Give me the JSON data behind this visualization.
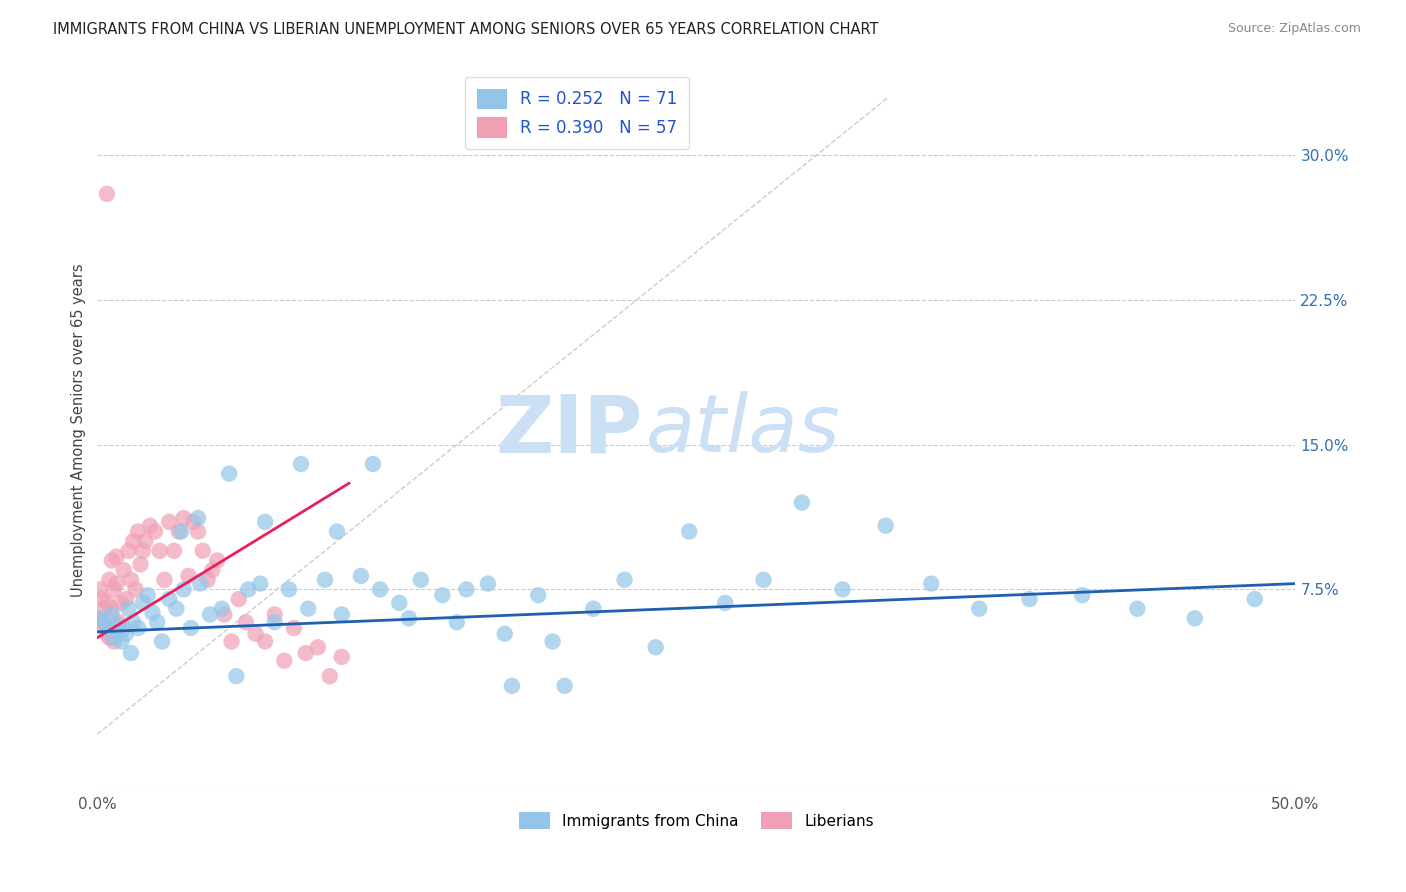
{
  "title": "IMMIGRANTS FROM CHINA VS LIBERIAN UNEMPLOYMENT AMONG SENIORS OVER 65 YEARS CORRELATION CHART",
  "source": "Source: ZipAtlas.com",
  "ylabel": "Unemployment Among Seniors over 65 years",
  "xlim": [
    0.0,
    0.5
  ],
  "ylim": [
    -0.03,
    0.345
  ],
  "xticks": [
    0.0,
    0.1,
    0.2,
    0.3,
    0.4,
    0.5
  ],
  "xticklabels_show": [
    "0.0%",
    "",
    "",
    "",
    "",
    "50.0%"
  ],
  "right_yticks": [
    0.075,
    0.15,
    0.225,
    0.3
  ],
  "right_yticklabels": [
    "7.5%",
    "15.0%",
    "22.5%",
    "30.0%"
  ],
  "grid_color": "#cccccc",
  "background_color": "#ffffff",
  "watermark_zip": "ZIP",
  "watermark_atlas": "atlas",
  "watermark_color": "#cce0f5",
  "diag_line_color": "#cccccc",
  "blue_series": {
    "name": "Immigrants from China",
    "R": 0.252,
    "N": 71,
    "color": "#92C5E8",
    "trend_color": "#2060B0",
    "x": [
      0.001,
      0.003,
      0.005,
      0.006,
      0.007,
      0.008,
      0.009,
      0.01,
      0.011,
      0.012,
      0.013,
      0.014,
      0.015,
      0.017,
      0.019,
      0.021,
      0.023,
      0.025,
      0.027,
      0.03,
      0.033,
      0.036,
      0.039,
      0.043,
      0.047,
      0.052,
      0.058,
      0.063,
      0.068,
      0.074,
      0.08,
      0.088,
      0.095,
      0.102,
      0.11,
      0.118,
      0.126,
      0.135,
      0.144,
      0.154,
      0.163,
      0.173,
      0.184,
      0.195,
      0.207,
      0.22,
      0.233,
      0.247,
      0.262,
      0.278,
      0.294,
      0.311,
      0.329,
      0.348,
      0.368,
      0.389,
      0.411,
      0.434,
      0.458,
      0.483,
      0.035,
      0.042,
      0.055,
      0.07,
      0.085,
      0.1,
      0.115,
      0.13,
      0.15,
      0.17,
      0.19
    ],
    "y": [
      0.06,
      0.058,
      0.055,
      0.062,
      0.05,
      0.057,
      0.053,
      0.048,
      0.055,
      0.052,
      0.065,
      0.042,
      0.058,
      0.055,
      0.068,
      0.072,
      0.063,
      0.058,
      0.048,
      0.07,
      0.065,
      0.075,
      0.055,
      0.078,
      0.062,
      0.065,
      0.03,
      0.075,
      0.078,
      0.058,
      0.075,
      0.065,
      0.08,
      0.062,
      0.082,
      0.075,
      0.068,
      0.08,
      0.072,
      0.075,
      0.078,
      0.025,
      0.072,
      0.025,
      0.065,
      0.08,
      0.045,
      0.105,
      0.068,
      0.08,
      0.12,
      0.075,
      0.108,
      0.078,
      0.065,
      0.07,
      0.072,
      0.065,
      0.06,
      0.07,
      0.105,
      0.112,
      0.135,
      0.11,
      0.14,
      0.105,
      0.14,
      0.06,
      0.058,
      0.052,
      0.048
    ],
    "trend_x": [
      0.0,
      0.5
    ],
    "trend_y": [
      0.053,
      0.078
    ]
  },
  "pink_series": {
    "name": "Liberians",
    "R": 0.39,
    "N": 57,
    "color": "#F0A0B5",
    "trend_color": "#E82060",
    "x": [
      0.001,
      0.001,
      0.002,
      0.002,
      0.003,
      0.003,
      0.004,
      0.004,
      0.005,
      0.005,
      0.006,
      0.006,
      0.007,
      0.007,
      0.008,
      0.008,
      0.009,
      0.01,
      0.011,
      0.012,
      0.013,
      0.014,
      0.015,
      0.016,
      0.017,
      0.018,
      0.019,
      0.02,
      0.022,
      0.024,
      0.026,
      0.028,
      0.03,
      0.032,
      0.034,
      0.036,
      0.038,
      0.04,
      0.042,
      0.044,
      0.046,
      0.048,
      0.05,
      0.053,
      0.056,
      0.059,
      0.062,
      0.066,
      0.07,
      0.074,
      0.078,
      0.082,
      0.087,
      0.092,
      0.097,
      0.102,
      0.004
    ],
    "y": [
      0.06,
      0.075,
      0.058,
      0.07,
      0.055,
      0.065,
      0.052,
      0.068,
      0.05,
      0.08,
      0.065,
      0.09,
      0.048,
      0.075,
      0.078,
      0.092,
      0.058,
      0.068,
      0.085,
      0.07,
      0.095,
      0.08,
      0.1,
      0.075,
      0.105,
      0.088,
      0.095,
      0.1,
      0.108,
      0.105,
      0.095,
      0.08,
      0.11,
      0.095,
      0.105,
      0.112,
      0.082,
      0.11,
      0.105,
      0.095,
      0.08,
      0.085,
      0.09,
      0.062,
      0.048,
      0.07,
      0.058,
      0.052,
      0.048,
      0.062,
      0.038,
      0.055,
      0.042,
      0.045,
      0.03,
      0.04,
      0.28
    ],
    "trend_x": [
      0.0,
      0.105
    ],
    "trend_y": [
      0.05,
      0.13
    ]
  }
}
